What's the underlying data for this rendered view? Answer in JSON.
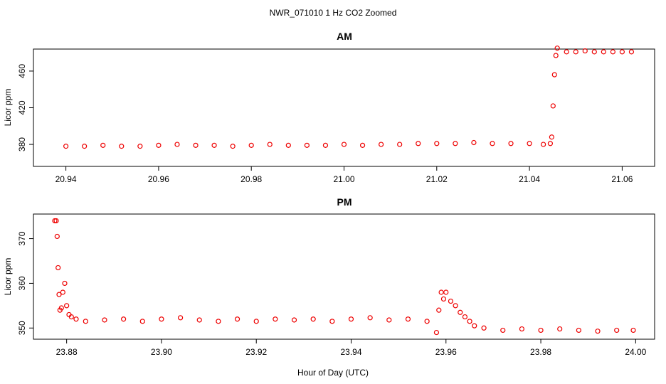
{
  "figure": {
    "title": "NWR_071010  1 Hz CO2 Zoomed",
    "xlabel": "Hour of Day (UTC)"
  },
  "colors": {
    "points": "#ee0000",
    "axes": "#000000"
  },
  "chart_data": [
    {
      "type": "scatter",
      "title": "AM",
      "xlabel": "",
      "ylabel": "Licor ppm",
      "xlim": [
        20.933,
        21.067
      ],
      "ylim": [
        356,
        484
      ],
      "xticks": [
        20.94,
        20.96,
        20.98,
        21.0,
        21.02,
        21.04,
        21.06
      ],
      "xtick_labels": [
        "20.94",
        "20.96",
        "20.98",
        "21.00",
        "21.02",
        "21.04",
        "21.06"
      ],
      "yticks": [
        380,
        420,
        460
      ],
      "ytick_labels": [
        "380",
        "420",
        "460"
      ],
      "grid": false,
      "marker": "open-circle",
      "series": [
        {
          "x": [
            20.94,
            20.944,
            20.948,
            20.952,
            20.956,
            20.96,
            20.964,
            20.968,
            20.972,
            20.976,
            20.98,
            20.984,
            20.988,
            20.992,
            20.996,
            21.0,
            21.004,
            21.008,
            21.012,
            21.016,
            21.02,
            21.024,
            21.028,
            21.032,
            21.036,
            21.04,
            21.043,
            21.0445,
            21.0448,
            21.0451,
            21.0454,
            21.0457,
            21.046,
            21.048,
            21.05,
            21.052,
            21.054,
            21.056,
            21.058,
            21.06,
            21.062
          ],
          "y": [
            378,
            378,
            379,
            378,
            378,
            379,
            380,
            379,
            379,
            378,
            379,
            380,
            379,
            379,
            379,
            380,
            379,
            380,
            380,
            381,
            381,
            381,
            382,
            381,
            381,
            381,
            380,
            381,
            388,
            422,
            456,
            477,
            485,
            481,
            481,
            482,
            481,
            481,
            481,
            481,
            481
          ]
        }
      ]
    },
    {
      "type": "scatter",
      "title": "PM",
      "xlabel": "Hour of Day (UTC)",
      "ylabel": "Licor ppm",
      "xlim": [
        23.873,
        24.004
      ],
      "ylim": [
        347.5,
        375.5
      ],
      "xticks": [
        23.88,
        23.9,
        23.92,
        23.94,
        23.96,
        23.98,
        24.0
      ],
      "xtick_labels": [
        "23.88",
        "23.90",
        "23.92",
        "23.94",
        "23.96",
        "23.98",
        "24.00"
      ],
      "yticks": [
        350,
        360,
        370
      ],
      "ytick_labels": [
        "350",
        "360",
        "370"
      ],
      "grid": false,
      "marker": "open-circle",
      "series": [
        {
          "x": [
            23.8775,
            23.8778,
            23.878,
            23.8782,
            23.8784,
            23.8786,
            23.8789,
            23.8792,
            23.8796,
            23.88,
            23.8805,
            23.881,
            23.882,
            23.884,
            23.888,
            23.892,
            23.896,
            23.9,
            23.904,
            23.908,
            23.912,
            23.916,
            23.92,
            23.924,
            23.928,
            23.932,
            23.936,
            23.94,
            23.944,
            23.948,
            23.952,
            23.956,
            23.958,
            23.9585,
            23.959,
            23.9595,
            23.96,
            23.961,
            23.962,
            23.963,
            23.964,
            23.965,
            23.966,
            23.968,
            23.972,
            23.976,
            23.98,
            23.984,
            23.988,
            23.992,
            23.996,
            23.9995
          ],
          "y": [
            374.0,
            374.0,
            370.5,
            363.5,
            357.5,
            354.0,
            354.5,
            358.0,
            360.0,
            355.0,
            353.0,
            352.5,
            352.0,
            351.5,
            351.8,
            352.0,
            351.5,
            352.0,
            352.3,
            351.8,
            351.5,
            352.0,
            351.5,
            352.0,
            351.8,
            352.0,
            351.5,
            352.0,
            352.3,
            351.8,
            352.0,
            351.5,
            349.0,
            354.0,
            358.0,
            356.5,
            358.0,
            356.0,
            355.0,
            353.5,
            352.5,
            351.5,
            350.5,
            350.0,
            349.5,
            349.8,
            349.5,
            349.8,
            349.5,
            349.3,
            349.5,
            349.5
          ]
        }
      ]
    }
  ]
}
